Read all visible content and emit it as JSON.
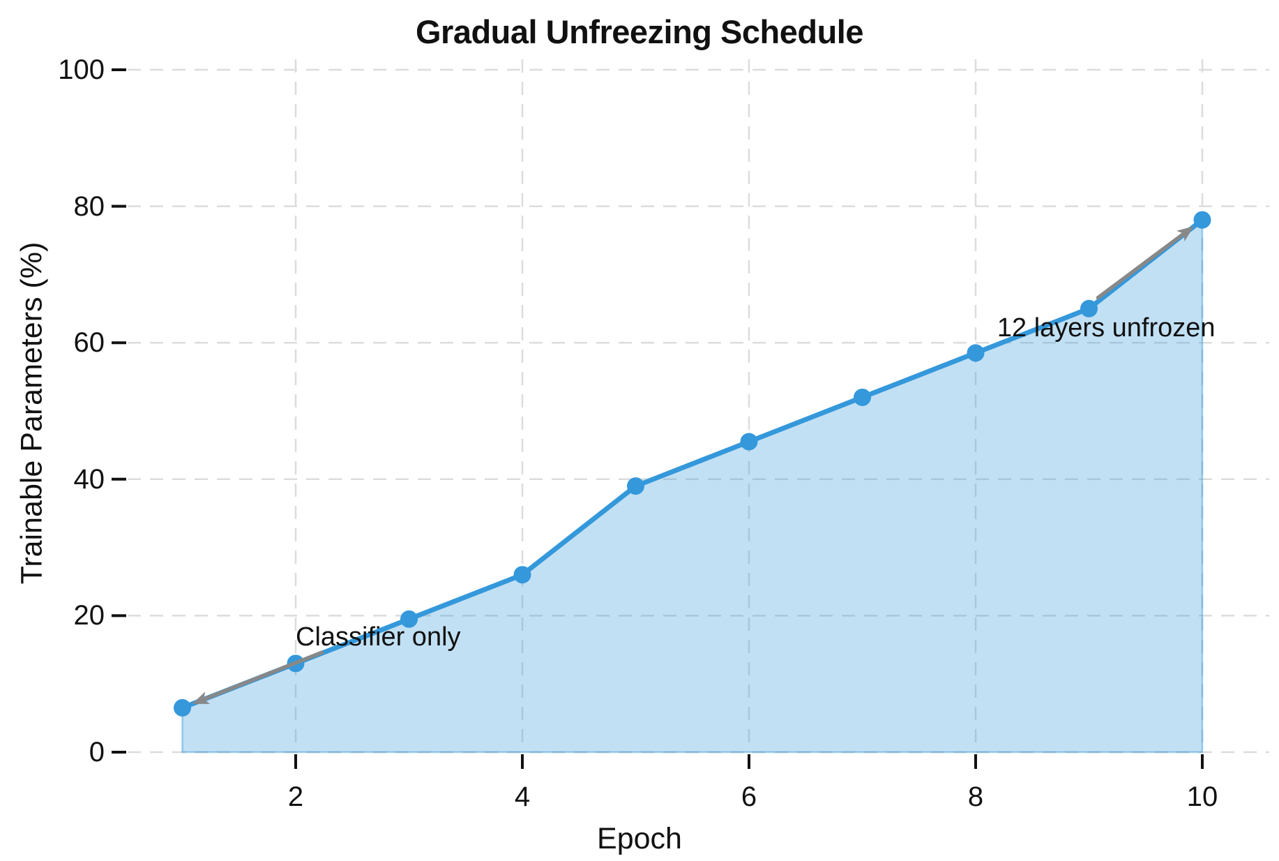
{
  "chart_data": {
    "type": "area",
    "title": "Gradual Unfreezing Schedule",
    "xlabel": "Epoch",
    "ylabel": "Trainable Parameters (%)",
    "x": [
      1,
      2,
      3,
      4,
      5,
      6,
      7,
      8,
      9,
      10
    ],
    "values": [
      6.5,
      13,
      19.5,
      26,
      39,
      45.5,
      52,
      58.5,
      65,
      78
    ],
    "xticks": [
      2,
      4,
      6,
      8,
      10
    ],
    "yticks": [
      0,
      20,
      40,
      60,
      80,
      100
    ],
    "ylim": [
      0,
      100
    ],
    "grid": "dashed",
    "legend_position": "none",
    "annotations": [
      {
        "text": "Classifier only",
        "target": [
          1,
          6.5
        ],
        "text_pos": [
          2.0,
          16.0
        ],
        "arrow_tail": [
          2.23,
          14.6
        ]
      },
      {
        "text": "12 layers unfrozen",
        "target": [
          10,
          78
        ],
        "text_pos": [
          8.19,
          61.2
        ],
        "arrow_tail": [
          9.08,
          66.6
        ]
      }
    ],
    "colors": {
      "line": "#3498db",
      "fill": "rgba(52,152,219,0.30)",
      "fill_edge": "rgba(52,152,219,0.45)",
      "marker": "#3498db",
      "arrow": "#888888",
      "grid": "#dcdcdc",
      "text": "#111111"
    }
  }
}
